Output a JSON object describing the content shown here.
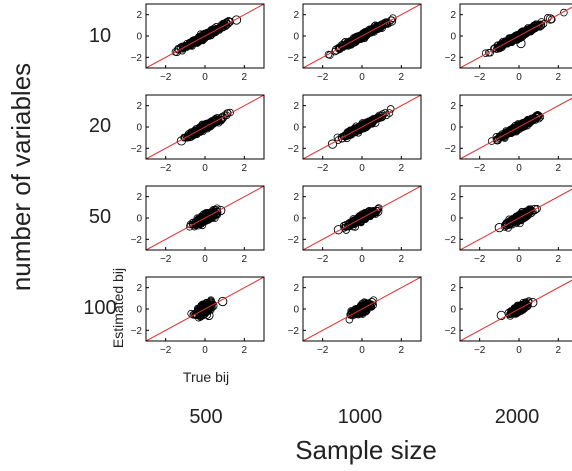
{
  "figure": {
    "x_title": "Sample size",
    "y_title": "number of variables",
    "panel_xlabel": "True bij",
    "panel_ylabel": "Estimated bij",
    "row_labels": [
      "10",
      "20",
      "50",
      "100"
    ],
    "col_labels": [
      "500",
      "1000",
      "2000"
    ]
  },
  "chart_data": {
    "type": "scatter",
    "layout": "grid",
    "rows": [
      "10",
      "20",
      "50",
      "100"
    ],
    "cols": [
      "500",
      "1000",
      "2000"
    ],
    "xlim": [
      -3,
      3
    ],
    "ylim": [
      -3,
      3
    ],
    "xticks": [
      -2,
      0,
      2
    ],
    "yticks": [
      -2,
      0,
      2
    ],
    "xtick_labels": [
      "−2",
      "0",
      "2"
    ],
    "ytick_labels": [
      "−2",
      "0",
      "2"
    ],
    "reference_line": {
      "slope": 1,
      "intercept": 0,
      "color": "#e03030"
    },
    "marker_color": "#000000",
    "panels": [
      {
        "row": "10",
        "col": "500",
        "spread": 0.55,
        "noise": 0.12,
        "points": [
          [
            -1.2,
            -1.1
          ],
          [
            -0.9,
            -0.8
          ],
          [
            -0.6,
            -0.5
          ],
          [
            -0.3,
            -0.2
          ],
          [
            0,
            0.1
          ],
          [
            0.3,
            0.4
          ],
          [
            0.6,
            0.6
          ],
          [
            0.9,
            0.9
          ],
          [
            1.6,
            1.5
          ],
          [
            1.2,
            1.3
          ]
        ]
      },
      {
        "row": "10",
        "col": "1000",
        "spread": 0.6,
        "noise": 0.12,
        "points": [
          [
            -1.3,
            -1.3
          ],
          [
            -1.0,
            -0.9
          ],
          [
            -0.6,
            -0.6
          ],
          [
            -0.2,
            -0.1
          ],
          [
            0.2,
            0.3
          ],
          [
            0.5,
            0.5
          ],
          [
            0.9,
            0.8
          ],
          [
            1.2,
            1.2
          ],
          [
            1.5,
            1.4
          ]
        ]
      },
      {
        "row": "10",
        "col": "2000",
        "spread": 0.6,
        "noise": 0.12,
        "points": [
          [
            -1.0,
            -1.1
          ],
          [
            -0.8,
            -0.6
          ],
          [
            -0.5,
            -0.4
          ],
          [
            -0.1,
            0.0
          ],
          [
            0.1,
            -0.7
          ],
          [
            0.4,
            0.5
          ],
          [
            0.8,
            0.9
          ],
          [
            1.1,
            1.0
          ],
          [
            1.6,
            1.6
          ]
        ]
      },
      {
        "row": "20",
        "col": "500",
        "spread": 0.45,
        "noise": 0.12,
        "points": [
          [
            -1.2,
            -1.3
          ],
          [
            -0.8,
            -0.7
          ],
          [
            -0.5,
            -0.4
          ],
          [
            -0.1,
            0.0
          ],
          [
            0.2,
            0.3
          ],
          [
            0.5,
            0.5
          ],
          [
            0.9,
            0.9
          ]
        ]
      },
      {
        "row": "20",
        "col": "1000",
        "spread": 0.5,
        "noise": 0.12,
        "points": [
          [
            -1.5,
            -1.6
          ],
          [
            -1.0,
            -1.0
          ],
          [
            -0.6,
            -0.5
          ],
          [
            -0.2,
            -0.1
          ],
          [
            0.3,
            0.3
          ],
          [
            0.6,
            0.7
          ],
          [
            1.0,
            1.0
          ]
        ]
      },
      {
        "row": "20",
        "col": "2000",
        "spread": 0.45,
        "noise": 0.12,
        "points": [
          [
            -1.1,
            -1.2
          ],
          [
            -0.7,
            -0.7
          ],
          [
            -0.4,
            -0.3
          ],
          [
            0,
            0.1
          ],
          [
            0.4,
            0.4
          ],
          [
            0.7,
            0.7
          ],
          [
            0.9,
            1.0
          ]
        ]
      },
      {
        "row": "50",
        "col": "500",
        "spread": 0.3,
        "noise": 0.2,
        "points": [
          [
            -0.6,
            -0.5
          ],
          [
            -0.3,
            -0.3
          ],
          [
            0,
            0.1
          ],
          [
            0.3,
            0.2
          ],
          [
            0.6,
            0.5
          ],
          [
            0.8,
            0.7
          ]
        ]
      },
      {
        "row": "50",
        "col": "1000",
        "spread": 0.35,
        "noise": 0.15,
        "points": [
          [
            -1.2,
            -1.1
          ],
          [
            -0.8,
            -0.7
          ],
          [
            -0.5,
            -0.4
          ],
          [
            -0.2,
            -0.1
          ],
          [
            0.2,
            0.2
          ],
          [
            0.5,
            0.4
          ],
          [
            0.8,
            0.6
          ]
        ]
      },
      {
        "row": "50",
        "col": "2000",
        "spread": 0.3,
        "noise": 0.15,
        "points": [
          [
            -1.0,
            -0.9
          ],
          [
            -0.6,
            -0.5
          ],
          [
            -0.3,
            -0.3
          ],
          [
            0,
            0.1
          ],
          [
            0.3,
            0.3
          ],
          [
            0.6,
            0.5
          ],
          [
            0.8,
            0.8
          ]
        ]
      },
      {
        "row": "100",
        "col": "500",
        "spread": 0.2,
        "noise": 0.22,
        "points": [
          [
            -0.5,
            -0.5
          ],
          [
            -0.2,
            -0.1
          ],
          [
            0,
            0.2
          ],
          [
            0.2,
            -0.6
          ],
          [
            0.4,
            0.3
          ],
          [
            0.9,
            0.7
          ]
        ]
      },
      {
        "row": "100",
        "col": "1000",
        "spread": 0.22,
        "noise": 0.18,
        "points": [
          [
            -0.5,
            -0.4
          ],
          [
            -0.2,
            -0.3
          ],
          [
            0,
            0.1
          ],
          [
            0.3,
            0.2
          ],
          [
            0.5,
            0.6
          ]
        ]
      },
      {
        "row": "100",
        "col": "2000",
        "spread": 0.2,
        "noise": 0.15,
        "points": [
          [
            -0.9,
            -0.6
          ],
          [
            -0.5,
            -0.4
          ],
          [
            -0.2,
            -0.1
          ],
          [
            0.1,
            0.2
          ],
          [
            0.4,
            0.3
          ],
          [
            0.7,
            0.6
          ]
        ]
      }
    ]
  }
}
